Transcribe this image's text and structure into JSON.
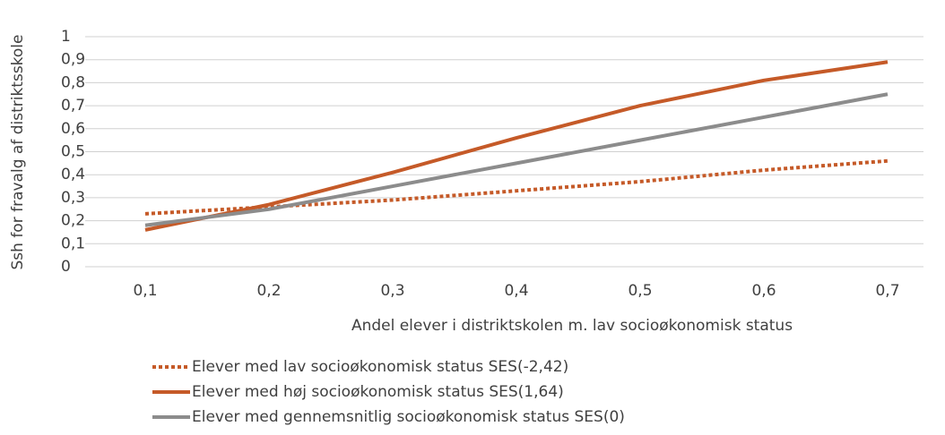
{
  "chart_data": {
    "type": "line",
    "y_label": "Ssh for fravalg af distriktsskole",
    "x_label": "Andel elever i distriktskolen m. lav socioøkonomisk status",
    "categories": [
      "0,1",
      "0,2",
      "0,3",
      "0,4",
      "0,5",
      "0,6",
      "0,7"
    ],
    "series": [
      {
        "name": "Elever med lav socioøkonomisk status SES(-2,42)",
        "color": "#c55a28",
        "dash": "dotted",
        "values": [
          0.23,
          0.26,
          0.29,
          0.33,
          0.37,
          0.42,
          0.46
        ]
      },
      {
        "name": "Elever med høj socioøkonomisk status SES(1,64)",
        "color": "#c55a28",
        "dash": "solid",
        "values": [
          0.16,
          0.27,
          0.41,
          0.56,
          0.7,
          0.81,
          0.89
        ]
      },
      {
        "name": "Elever med gennemsnitlig socioøkonomisk status SES(0)",
        "color": "#8c8c8c",
        "dash": "solid",
        "values": [
          0.18,
          0.25,
          0.35,
          0.45,
          0.55,
          0.65,
          0.75
        ]
      }
    ],
    "ylim": [
      0,
      1
    ],
    "yticks": [
      0,
      {
        "value": 0.1,
        "label": "0,1"
      },
      {
        "value": 0.2,
        "label": "0,2"
      },
      {
        "value": 0.3,
        "label": "0,3"
      },
      {
        "value": 0.4,
        "label": "0,4"
      },
      {
        "value": 0.5,
        "label": "0,5"
      },
      {
        "value": 0.6,
        "label": "0,6"
      },
      {
        "value": 0.7,
        "label": "0,7"
      },
      {
        "value": 0.8,
        "label": "0,8"
      },
      {
        "value": 0.9,
        "label": "0,9"
      },
      1
    ],
    "grid": true,
    "legend": "bottom"
  }
}
